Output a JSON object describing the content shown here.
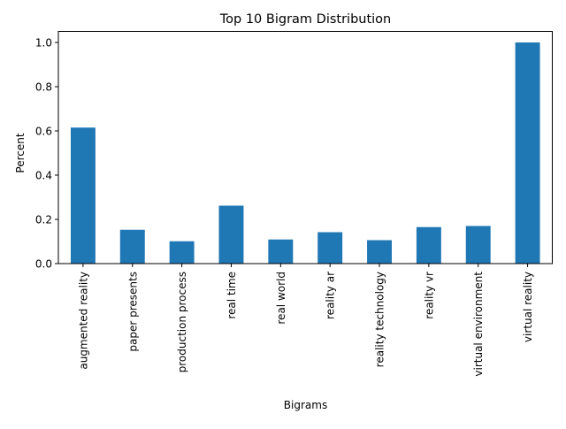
{
  "chart_data": {
    "type": "bar",
    "title": "Top 10 Bigram Distribution",
    "xlabel": "Bigrams",
    "ylabel": "Percent",
    "categories": [
      "augmented reality",
      "paper presents",
      "production process",
      "real time",
      "real world",
      "reality ar",
      "reality technology",
      "reality vr",
      "virtual environment",
      "virtual reality"
    ],
    "values": [
      0.615,
      0.153,
      0.101,
      0.262,
      0.109,
      0.142,
      0.106,
      0.165,
      0.17,
      1.0
    ],
    "ylim": [
      0,
      1.05
    ],
    "yticks": [
      0.0,
      0.2,
      0.4,
      0.6,
      0.8,
      1.0
    ],
    "ytick_labels": [
      "0.0",
      "0.2",
      "0.4",
      "0.6",
      "0.8",
      "1.0"
    ],
    "bar_color": "#1f77b4",
    "grid": false,
    "legend": "none"
  }
}
